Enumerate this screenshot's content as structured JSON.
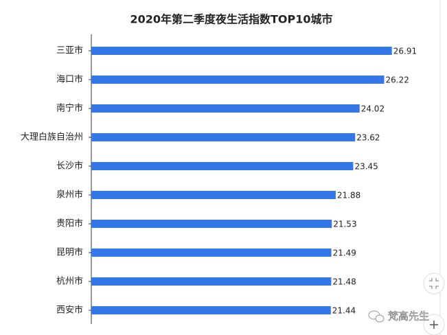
{
  "chart_data": {
    "type": "hbar",
    "title": "2020年第二季度夜生活指数TOP10城市",
    "categories": [
      "三亚市",
      "海口市",
      "南宁市",
      "大理白族自治州",
      "长沙市",
      "泉州市",
      "贵阳市",
      "昆明市",
      "杭州市",
      "西安市"
    ],
    "values": [
      26.91,
      26.22,
      24.02,
      23.62,
      23.45,
      21.88,
      21.53,
      21.49,
      21.48,
      21.44
    ],
    "color": "#3478e8",
    "xlim": [
      0,
      30
    ],
    "grid": false
  },
  "watermark": "梵高先生"
}
